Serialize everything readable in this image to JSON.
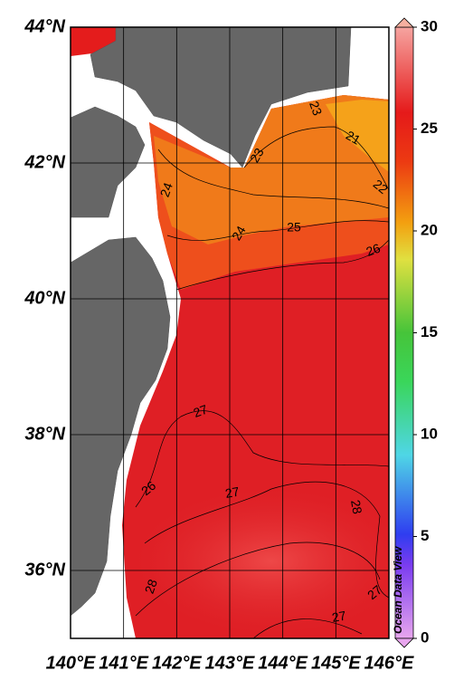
{
  "map": {
    "lat_range": [
      35,
      44
    ],
    "lon_range": [
      140,
      146
    ],
    "lat_ticks": [
      {
        "value": 44,
        "label": "44°N"
      },
      {
        "value": 42,
        "label": "42°N"
      },
      {
        "value": 40,
        "label": "40°N"
      },
      {
        "value": 38,
        "label": "38°N"
      },
      {
        "value": 36,
        "label": "36°N"
      }
    ],
    "lon_ticks": [
      {
        "value": 140,
        "label": "140°E"
      },
      {
        "value": 141,
        "label": "141°E"
      },
      {
        "value": 142,
        "label": "142°E"
      },
      {
        "value": 143,
        "label": "143°E"
      },
      {
        "value": 144,
        "label": "144°E"
      },
      {
        "value": 145,
        "label": "145°E"
      },
      {
        "value": 146,
        "label": "146°E"
      }
    ],
    "colorbar": {
      "lim": [
        0,
        30
      ],
      "ticks": [
        0,
        5,
        10,
        15,
        20,
        25,
        30
      ]
    },
    "contour_labels": [
      23,
      21,
      22,
      23,
      24,
      24,
      25,
      26,
      26,
      27,
      27,
      28,
      28,
      27,
      27
    ],
    "watermark": "Ocean Data View"
  }
}
